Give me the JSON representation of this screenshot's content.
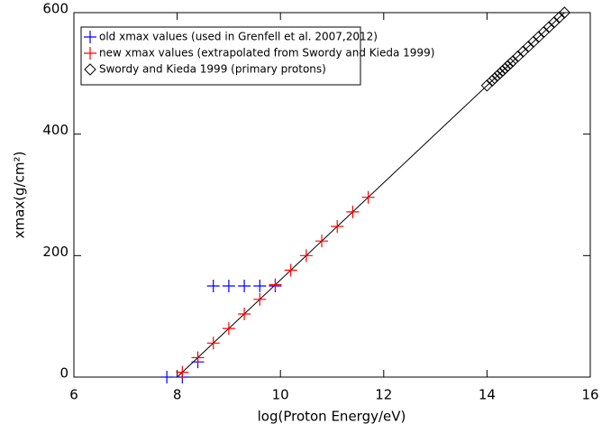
{
  "chart_data": {
    "type": "scatter",
    "xlabel": "log(Proton Energy/eV)",
    "ylabel": "xmax(g/cm²)",
    "xlim": [
      6,
      16
    ],
    "ylim": [
      0,
      600
    ],
    "xticks": [
      6,
      8,
      10,
      12,
      14,
      16
    ],
    "yticks": [
      0,
      200,
      400,
      600
    ],
    "series": [
      {
        "name": "old xmax values (used in Grenfell et al. 2007,2012)",
        "color": "#0000ff",
        "marker": "plus",
        "x": [
          7.8,
          8.1,
          8.4,
          8.7,
          9.0,
          9.3,
          9.6,
          9.9
        ],
        "y": [
          0,
          0,
          25,
          150,
          150,
          150,
          150,
          150
        ]
      },
      {
        "name": "new xmax values (extrapolated from Swordy and Kieda 1999)",
        "color": "#ff0000",
        "marker": "plus",
        "x": [
          8.1,
          8.4,
          8.7,
          9.0,
          9.3,
          9.6,
          9.9,
          10.2,
          10.5,
          10.8,
          11.1,
          11.4,
          11.7
        ],
        "y": [
          8,
          32,
          56,
          80,
          104,
          128,
          152,
          176,
          200,
          224,
          248,
          272,
          296
        ]
      },
      {
        "name": "Swordy and Kieda 1999 (primary protons)",
        "color": "#000000",
        "marker": "diamond",
        "x": [
          14.0,
          14.1,
          14.15,
          14.2,
          14.25,
          14.3,
          14.35,
          14.4,
          14.45,
          14.5,
          14.6,
          14.7,
          14.8,
          14.9,
          15.0,
          15.1,
          15.2,
          15.3,
          15.4,
          15.5
        ],
        "y": [
          480,
          488,
          492,
          496,
          500,
          504,
          508,
          512,
          516,
          520,
          528,
          536,
          544,
          552,
          560,
          568,
          576,
          584,
          592,
          600
        ]
      }
    ],
    "fit_line": {
      "color": "#000000",
      "x": [
        8.0,
        15.5
      ],
      "y": [
        0,
        600
      ]
    }
  }
}
